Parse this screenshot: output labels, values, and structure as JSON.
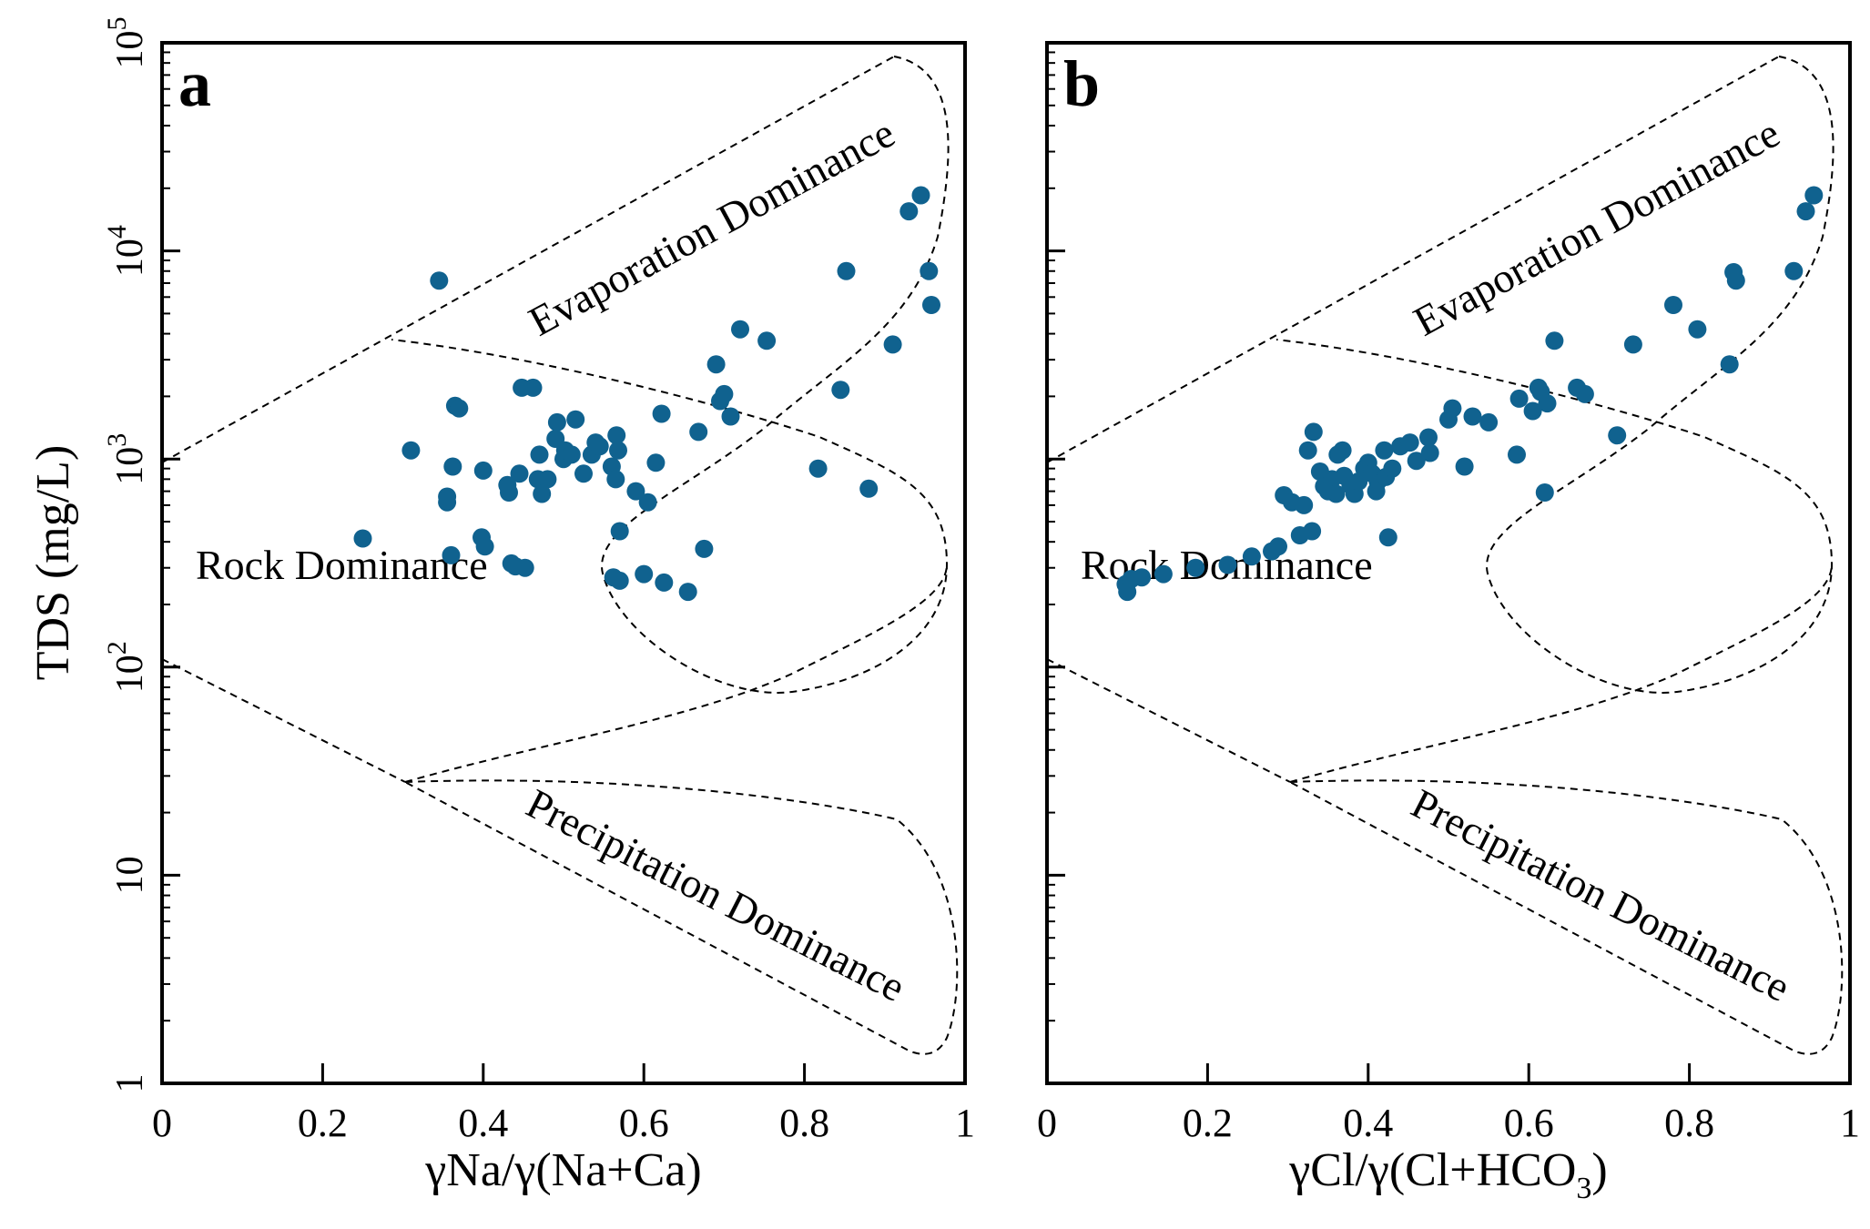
{
  "chart_data": [
    {
      "type": "scatter",
      "panel_label": "a",
      "xlabel": "γNa/γ(Na+Ca)",
      "ylabel": "TDS (mg/L)",
      "xlim": [
        0,
        1
      ],
      "ylim": [
        1,
        100000
      ],
      "yscale": "log",
      "x_ticks": [
        "0",
        "0.2",
        "0.4",
        "0.6",
        "0.8",
        "1"
      ],
      "y_ticks": [
        "1",
        "10",
        "10^2",
        "10^3",
        "10^4",
        "10^5"
      ],
      "grid": false,
      "marker_color": "#10628f",
      "region_labels": [
        "Evaporation Dominance",
        "Rock Dominance",
        "Precipitation Dominance"
      ],
      "points": [
        [
          0.25,
          415
        ],
        [
          0.31,
          1100
        ],
        [
          0.345,
          7200
        ],
        [
          0.355,
          620
        ],
        [
          0.355,
          660
        ],
        [
          0.36,
          345
        ],
        [
          0.362,
          920
        ],
        [
          0.365,
          1800
        ],
        [
          0.37,
          1750
        ],
        [
          0.398,
          420
        ],
        [
          0.4,
          880
        ],
        [
          0.402,
          380
        ],
        [
          0.43,
          750
        ],
        [
          0.432,
          690
        ],
        [
          0.435,
          315
        ],
        [
          0.44,
          305
        ],
        [
          0.445,
          850
        ],
        [
          0.448,
          2200
        ],
        [
          0.452,
          300
        ],
        [
          0.462,
          2200
        ],
        [
          0.468,
          800
        ],
        [
          0.47,
          1050
        ],
        [
          0.473,
          680
        ],
        [
          0.48,
          800
        ],
        [
          0.49,
          1250
        ],
        [
          0.492,
          1500
        ],
        [
          0.5,
          1000
        ],
        [
          0.502,
          1100
        ],
        [
          0.51,
          1050
        ],
        [
          0.515,
          1550
        ],
        [
          0.525,
          850
        ],
        [
          0.535,
          1050
        ],
        [
          0.54,
          1200
        ],
        [
          0.545,
          1150
        ],
        [
          0.56,
          920
        ],
        [
          0.562,
          270
        ],
        [
          0.565,
          800
        ],
        [
          0.566,
          1300
        ],
        [
          0.568,
          1100
        ],
        [
          0.57,
          450
        ],
        [
          0.57,
          260
        ],
        [
          0.59,
          700
        ],
        [
          0.6,
          280
        ],
        [
          0.605,
          620
        ],
        [
          0.615,
          960
        ],
        [
          0.622,
          1650
        ],
        [
          0.625,
          255
        ],
        [
          0.655,
          230
        ],
        [
          0.668,
          1350
        ],
        [
          0.675,
          370
        ],
        [
          0.69,
          2850
        ],
        [
          0.695,
          1900
        ],
        [
          0.7,
          2050
        ],
        [
          0.708,
          1600
        ],
        [
          0.72,
          4200
        ],
        [
          0.753,
          3700
        ],
        [
          0.817,
          900
        ],
        [
          0.845,
          2150
        ],
        [
          0.852,
          8000
        ],
        [
          0.88,
          720
        ],
        [
          0.91,
          3550
        ],
        [
          0.93,
          15500
        ],
        [
          0.945,
          18500
        ],
        [
          0.955,
          8000
        ],
        [
          0.958,
          5500
        ]
      ]
    },
    {
      "type": "scatter",
      "panel_label": "b",
      "xlabel": "γCl/γ(Cl+HCO",
      "xlabel_sub": "3",
      "xlabel_tail": ")",
      "xlim": [
        0,
        1
      ],
      "ylim": [
        1,
        100000
      ],
      "yscale": "log",
      "x_ticks": [
        "0",
        "0.2",
        "0.4",
        "0.6",
        "0.8",
        "1"
      ],
      "grid": false,
      "marker_color": "#10628f",
      "region_labels": [
        "Evaporation Dominance",
        "Rock Dominance",
        "Precipitation Dominance"
      ],
      "points": [
        [
          0.098,
          250
        ],
        [
          0.1,
          230
        ],
        [
          0.105,
          265
        ],
        [
          0.118,
          270
        ],
        [
          0.145,
          280
        ],
        [
          0.185,
          300
        ],
        [
          0.225,
          310
        ],
        [
          0.255,
          340
        ],
        [
          0.28,
          360
        ],
        [
          0.288,
          380
        ],
        [
          0.295,
          670
        ],
        [
          0.305,
          620
        ],
        [
          0.315,
          430
        ],
        [
          0.32,
          600
        ],
        [
          0.325,
          1100
        ],
        [
          0.33,
          450
        ],
        [
          0.332,
          1350
        ],
        [
          0.34,
          870
        ],
        [
          0.345,
          740
        ],
        [
          0.35,
          700
        ],
        [
          0.355,
          800
        ],
        [
          0.36,
          680
        ],
        [
          0.362,
          1050
        ],
        [
          0.368,
          1100
        ],
        [
          0.37,
          830
        ],
        [
          0.378,
          750
        ],
        [
          0.383,
          680
        ],
        [
          0.388,
          780
        ],
        [
          0.395,
          900
        ],
        [
          0.4,
          960
        ],
        [
          0.405,
          850
        ],
        [
          0.41,
          700
        ],
        [
          0.412,
          780
        ],
        [
          0.42,
          1100
        ],
        [
          0.422,
          820
        ],
        [
          0.425,
          420
        ],
        [
          0.43,
          900
        ],
        [
          0.44,
          1150
        ],
        [
          0.452,
          1200
        ],
        [
          0.46,
          980
        ],
        [
          0.475,
          1270
        ],
        [
          0.477,
          1070
        ],
        [
          0.5,
          1550
        ],
        [
          0.505,
          1750
        ],
        [
          0.52,
          920
        ],
        [
          0.53,
          1600
        ],
        [
          0.55,
          1500
        ],
        [
          0.585,
          1050
        ],
        [
          0.588,
          1950
        ],
        [
          0.605,
          1700
        ],
        [
          0.612,
          2200
        ],
        [
          0.615,
          2100
        ],
        [
          0.62,
          690
        ],
        [
          0.623,
          1850
        ],
        [
          0.632,
          3700
        ],
        [
          0.66,
          2200
        ],
        [
          0.67,
          2050
        ],
        [
          0.71,
          1300
        ],
        [
          0.73,
          3550
        ],
        [
          0.78,
          5500
        ],
        [
          0.81,
          4200
        ],
        [
          0.85,
          2850
        ],
        [
          0.855,
          7900
        ],
        [
          0.858,
          7200
        ],
        [
          0.93,
          8000
        ],
        [
          0.945,
          15500
        ],
        [
          0.955,
          18500
        ]
      ]
    }
  ]
}
